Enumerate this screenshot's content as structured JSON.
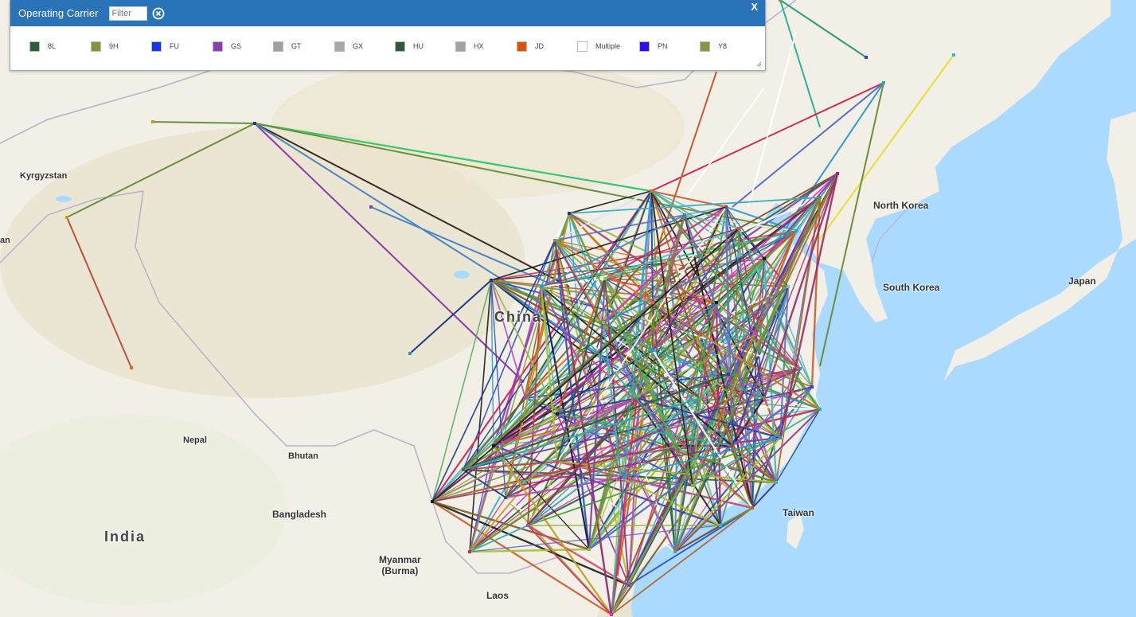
{
  "legend": {
    "title": "Operating Carrier",
    "filter_placeholder": "Filter",
    "close_label": "X",
    "items": [
      {
        "code": "8L",
        "color": "#2d5e3a"
      },
      {
        "code": "9H",
        "color": "#7a9a3a"
      },
      {
        "code": "FU",
        "color": "#1437f2"
      },
      {
        "code": "GS",
        "color": "#8742a8"
      },
      {
        "code": "GT",
        "color": "#a0a0a0"
      },
      {
        "code": "GX",
        "color": "#a8a8a8"
      },
      {
        "code": "HU",
        "color": "#2f5a38"
      },
      {
        "code": "HX",
        "color": "#a3a3a3"
      },
      {
        "code": "JD",
        "color": "#d3560e"
      },
      {
        "code": "Multiple",
        "color": "#ffffff"
      },
      {
        "code": "PN",
        "color": "#2a10ea"
      },
      {
        "code": "Y8",
        "color": "#7e9a45"
      }
    ]
  },
  "map_labels": {
    "kyrgyzstan": "Kyrgyzstan",
    "an": "an",
    "china": "China",
    "north_korea": "North Korea",
    "south_korea": "South Korea",
    "japan": "Japan",
    "nepal": "Nepal",
    "bhutan": "Bhutan",
    "bangladesh": "Bangladesh",
    "india": "India",
    "myanmar": "Myanmar\n(Burma)",
    "taiwan": "Taiwan",
    "laos": "Laos"
  },
  "route_colors": [
    "#6c8f3a",
    "#7a9a3a",
    "#2d5e3a",
    "#3cb6c6",
    "#d12a5a",
    "#4a86c6",
    "#8b3aa8",
    "#a8c02a",
    "#1f3a8c",
    "#2db39a",
    "#e0406a",
    "#5a6ec8",
    "#c85a2a",
    "#1a1a1a",
    "#8fb63a",
    "#2a9ad6",
    "#b04ab8",
    "#4fae5a",
    "#9a2a6a",
    "#e06a1a",
    "#3a3a9a",
    "#68c8c0",
    "#ffffff",
    "#c0a020",
    "#e030c0",
    "#2448d0",
    "#7a5a2a",
    "#40a040"
  ]
}
